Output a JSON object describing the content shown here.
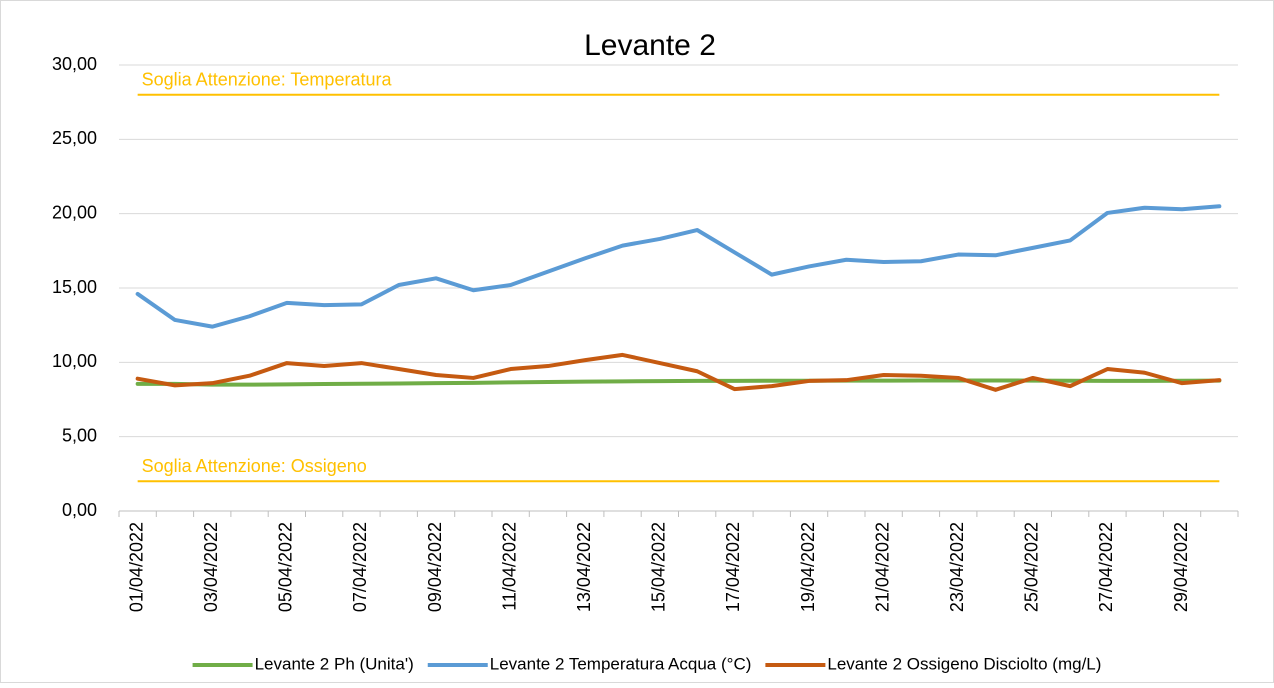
{
  "chart_data": {
    "type": "line",
    "title": "Levante 2",
    "categories": [
      "01/04/2022",
      null,
      "03/04/2022",
      null,
      "05/04/2022",
      null,
      "07/04/2022",
      null,
      "09/04/2022",
      null,
      "11/04/2022",
      null,
      "13/04/2022",
      null,
      "15/04/2022",
      null,
      "17/04/2022",
      null,
      "19/04/2022",
      null,
      "21/04/2022",
      null,
      "23/04/2022",
      null,
      "25/04/2022",
      null,
      "27/04/2022",
      null,
      "29/04/2022",
      null
    ],
    "series": [
      {
        "name": "Levante 2 Ph (Unita')",
        "color": "#70ad47",
        "values": [
          8.55,
          8.55,
          8.5,
          8.5,
          8.52,
          8.54,
          8.56,
          8.58,
          8.6,
          8.62,
          8.65,
          8.68,
          8.7,
          8.72,
          8.74,
          8.75,
          8.75,
          8.76,
          8.76,
          8.77,
          8.77,
          8.78,
          8.78,
          8.78,
          8.77,
          8.76,
          8.75,
          8.75,
          8.76,
          8.77
        ]
      },
      {
        "name": "Levante 2 Temperatura Acqua (°C)",
        "color": "#5b9bd5",
        "values": [
          14.6,
          12.85,
          12.4,
          13.1,
          14.0,
          13.85,
          13.9,
          15.2,
          15.65,
          14.85,
          15.2,
          16.1,
          17.0,
          17.85,
          18.3,
          18.9,
          17.4,
          15.9,
          16.45,
          16.9,
          16.75,
          16.8,
          17.25,
          17.2,
          17.7,
          18.2,
          20.05,
          20.4,
          20.3,
          20.5
        ]
      },
      {
        "name": "Levante 2 Ossigeno Disciolto (mg/L)",
        "color": "#c55a11",
        "values": [
          8.9,
          8.45,
          8.6,
          9.1,
          9.95,
          9.75,
          9.95,
          9.55,
          9.15,
          8.95,
          9.55,
          9.75,
          10.15,
          10.5,
          9.95,
          9.4,
          8.2,
          8.4,
          8.75,
          8.8,
          9.15,
          9.1,
          8.95,
          8.15,
          8.95,
          8.4,
          9.55,
          9.3,
          8.6,
          8.8
        ]
      }
    ],
    "reference_lines": [
      {
        "label": "Soglia Attenzione: Temperatura",
        "value": 28,
        "color": "#ffc000"
      },
      {
        "label": "Soglia Attenzione: Ossigeno",
        "value": 2,
        "color": "#ffc000"
      }
    ],
    "ylim": [
      0,
      30
    ],
    "yticks": [
      {
        "value": 0,
        "label": "0,00"
      },
      {
        "value": 5,
        "label": "5,00"
      },
      {
        "value": 10,
        "label": "10,00"
      },
      {
        "value": 15,
        "label": "15,00"
      },
      {
        "value": 20,
        "label": "20,00"
      },
      {
        "value": 25,
        "label": "25,00"
      },
      {
        "value": 30,
        "label": "30,00"
      }
    ],
    "grid": true,
    "legend": "bottom"
  }
}
